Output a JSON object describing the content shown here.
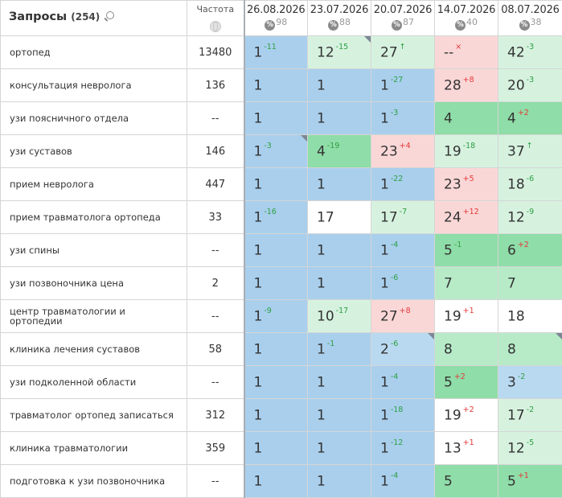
{
  "header": {
    "title": "Запросы",
    "count": "(254)",
    "frequency_label": "Частота",
    "dates": [
      {
        "label": "26.08.2026",
        "sub": "98"
      },
      {
        "label": "23.07.2026",
        "sub": "88"
      },
      {
        "label": "20.07.2026",
        "sub": "87"
      },
      {
        "label": "14.07.2026",
        "sub": "40"
      },
      {
        "label": "08.07.2026",
        "sub": "38"
      }
    ],
    "percent_symbol": "%"
  },
  "rows": [
    {
      "query": "ортопед",
      "freq": "13480",
      "cells": [
        {
          "v": "1",
          "d": "-11",
          "dir": "up",
          "bg": "top"
        },
        {
          "v": "12",
          "d": "-15",
          "dir": "up",
          "bg": "lg",
          "corner": true
        },
        {
          "v": "27",
          "d": "↑",
          "dir": "up",
          "bg": "lg"
        },
        {
          "v": "--",
          "d": "×",
          "dir": "down",
          "bg": "r"
        },
        {
          "v": "42",
          "d": "-3",
          "dir": "up",
          "bg": "lg"
        }
      ]
    },
    {
      "query": "консультация невролога",
      "freq": "136",
      "cells": [
        {
          "v": "1",
          "d": "",
          "bg": "top"
        },
        {
          "v": "1",
          "d": "",
          "bg": "top"
        },
        {
          "v": "1",
          "d": "-27",
          "dir": "up",
          "bg": "top"
        },
        {
          "v": "28",
          "d": "+8",
          "dir": "down",
          "bg": "r"
        },
        {
          "v": "20",
          "d": "-3",
          "dir": "up",
          "bg": "lg"
        }
      ]
    },
    {
      "query": "узи поясничного отдела",
      "freq": "--",
      "cells": [
        {
          "v": "1",
          "d": "",
          "bg": "top"
        },
        {
          "v": "1",
          "d": "",
          "bg": "top"
        },
        {
          "v": "1",
          "d": "-3",
          "dir": "up",
          "bg": "top"
        },
        {
          "v": "4",
          "d": "",
          "bg": "g"
        },
        {
          "v": "4",
          "d": "+2",
          "dir": "down",
          "bg": "g"
        }
      ]
    },
    {
      "query": "узи суставов",
      "freq": "146",
      "cells": [
        {
          "v": "1",
          "d": "-3",
          "dir": "up",
          "bg": "top",
          "corner": true
        },
        {
          "v": "4",
          "d": "-19",
          "dir": "up",
          "bg": "g"
        },
        {
          "v": "23",
          "d": "+4",
          "dir": "down",
          "bg": "r"
        },
        {
          "v": "19",
          "d": "-18",
          "dir": "up",
          "bg": "lg"
        },
        {
          "v": "37",
          "d": "↑",
          "dir": "up",
          "bg": "lg"
        }
      ]
    },
    {
      "query": "прием невролога",
      "freq": "447",
      "cells": [
        {
          "v": "1",
          "d": "",
          "bg": "top"
        },
        {
          "v": "1",
          "d": "",
          "bg": "top"
        },
        {
          "v": "1",
          "d": "-22",
          "dir": "up",
          "bg": "top"
        },
        {
          "v": "23",
          "d": "+5",
          "dir": "down",
          "bg": "r"
        },
        {
          "v": "18",
          "d": "-6",
          "dir": "up",
          "bg": "lg"
        }
      ]
    },
    {
      "query": "прием травматолога ортопеда",
      "freq": "33",
      "cells": [
        {
          "v": "1",
          "d": "-16",
          "dir": "up",
          "bg": "top"
        },
        {
          "v": "17",
          "d": "",
          "bg": "w"
        },
        {
          "v": "17",
          "d": "-7",
          "dir": "up",
          "bg": "lg"
        },
        {
          "v": "24",
          "d": "+12",
          "dir": "down",
          "bg": "r"
        },
        {
          "v": "12",
          "d": "-9",
          "dir": "up",
          "bg": "lg"
        }
      ]
    },
    {
      "query": "узи спины",
      "freq": "--",
      "cells": [
        {
          "v": "1",
          "d": "",
          "bg": "top"
        },
        {
          "v": "1",
          "d": "",
          "bg": "top"
        },
        {
          "v": "1",
          "d": "-4",
          "dir": "up",
          "bg": "top"
        },
        {
          "v": "5",
          "d": "-1",
          "dir": "up",
          "bg": "g"
        },
        {
          "v": "6",
          "d": "+2",
          "dir": "down",
          "bg": "g"
        }
      ]
    },
    {
      "query": "узи позвоночника цена",
      "freq": "2",
      "cells": [
        {
          "v": "1",
          "d": "",
          "bg": "top"
        },
        {
          "v": "1",
          "d": "",
          "bg": "top"
        },
        {
          "v": "1",
          "d": "-6",
          "dir": "up",
          "bg": "top"
        },
        {
          "v": "7",
          "d": "",
          "bg": "mg"
        },
        {
          "v": "7",
          "d": "",
          "bg": "mg"
        }
      ]
    },
    {
      "query": "центр травматологии и ортопедии",
      "freq": "--",
      "cells": [
        {
          "v": "1",
          "d": "-9",
          "dir": "up",
          "bg": "top"
        },
        {
          "v": "10",
          "d": "-17",
          "dir": "up",
          "bg": "lg"
        },
        {
          "v": "27",
          "d": "+8",
          "dir": "down",
          "bg": "r"
        },
        {
          "v": "19",
          "d": "+1",
          "dir": "down",
          "bg": "w"
        },
        {
          "v": "18",
          "d": "",
          "bg": "w"
        }
      ]
    },
    {
      "query": "клиника лечения суставов",
      "freq": "58",
      "cells": [
        {
          "v": "1",
          "d": "",
          "bg": "top"
        },
        {
          "v": "1",
          "d": "-1",
          "dir": "up",
          "bg": "top"
        },
        {
          "v": "2",
          "d": "-6",
          "dir": "up",
          "bg": "lb",
          "corner": true
        },
        {
          "v": "8",
          "d": "",
          "bg": "mg"
        },
        {
          "v": "8",
          "d": "",
          "bg": "mg",
          "corner": true
        }
      ]
    },
    {
      "query": "узи подколенной области",
      "freq": "--",
      "cells": [
        {
          "v": "1",
          "d": "",
          "bg": "top"
        },
        {
          "v": "1",
          "d": "",
          "bg": "top"
        },
        {
          "v": "1",
          "d": "-4",
          "dir": "up",
          "bg": "top"
        },
        {
          "v": "5",
          "d": "+2",
          "dir": "down",
          "bg": "g"
        },
        {
          "v": "3",
          "d": "-2",
          "dir": "up",
          "bg": "lb"
        }
      ]
    },
    {
      "query": "травматолог ортопед записаться",
      "freq": "312",
      "cells": [
        {
          "v": "1",
          "d": "",
          "bg": "top"
        },
        {
          "v": "1",
          "d": "",
          "bg": "top"
        },
        {
          "v": "1",
          "d": "-18",
          "dir": "up",
          "bg": "top"
        },
        {
          "v": "19",
          "d": "+2",
          "dir": "down",
          "bg": "w"
        },
        {
          "v": "17",
          "d": "-2",
          "dir": "up",
          "bg": "lg"
        }
      ]
    },
    {
      "query": "клиника травматологии",
      "freq": "359",
      "cells": [
        {
          "v": "1",
          "d": "",
          "bg": "top"
        },
        {
          "v": "1",
          "d": "",
          "bg": "top"
        },
        {
          "v": "1",
          "d": "-12",
          "dir": "up",
          "bg": "top"
        },
        {
          "v": "13",
          "d": "+1",
          "dir": "down",
          "bg": "w"
        },
        {
          "v": "12",
          "d": "-5",
          "dir": "up",
          "bg": "lg"
        }
      ]
    },
    {
      "query": "подготовка к узи позвоночника",
      "freq": "--",
      "cells": [
        {
          "v": "1",
          "d": "",
          "bg": "top"
        },
        {
          "v": "1",
          "d": "",
          "bg": "top"
        },
        {
          "v": "1",
          "d": "-4",
          "dir": "up",
          "bg": "top"
        },
        {
          "v": "5",
          "d": "",
          "bg": "g"
        },
        {
          "v": "5",
          "d": "+1",
          "dir": "down",
          "bg": "g"
        }
      ]
    }
  ],
  "colors": {
    "top": "#a9cfed",
    "light_blue": "#b9d9f1",
    "green": "#8fdda8",
    "mid_green": "#b7ebc8",
    "light_green": "#d6f2df",
    "red_light": "#fad7d7",
    "delta_up": "#2ea043",
    "delta_down": "#e23a3a"
  }
}
